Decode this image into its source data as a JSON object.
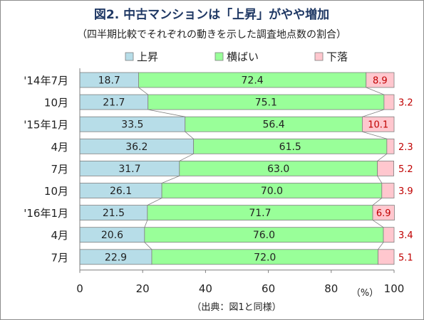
{
  "chart_data": {
    "type": "bar",
    "orientation": "horizontal",
    "stacked": true,
    "title": "図2. 中古マンションは「上昇」がやや増加",
    "subtitle": "（四半期比較でそれぞれの動きを示した調査地点数の割合）",
    "categories": [
      "'14年7月",
      "10月",
      "'15年1月",
      "4月",
      "7月",
      "10月",
      "'16年1月",
      "4月",
      "7月"
    ],
    "series": [
      {
        "name": "上昇",
        "color": "#b7dde8",
        "values": [
          18.7,
          21.7,
          33.5,
          36.2,
          31.7,
          26.1,
          21.5,
          20.6,
          22.9
        ]
      },
      {
        "name": "横ばい",
        "color": "#99ff99",
        "values": [
          72.4,
          75.1,
          56.4,
          61.5,
          63.0,
          70.0,
          71.7,
          76.0,
          72.0
        ]
      },
      {
        "name": "下落",
        "color": "#ffc7ce",
        "values": [
          8.9,
          3.2,
          10.1,
          2.3,
          5.2,
          3.9,
          6.9,
          3.4,
          5.1
        ]
      }
    ],
    "value_labels": [
      [
        "18.7",
        "21.7",
        "33.5",
        "36.2",
        "31.7",
        "26.1",
        "21.5",
        "20.6",
        "22.9"
      ],
      [
        "72.4",
        "75.1",
        "56.4",
        "61.5",
        "63.0",
        "70.0",
        "71.7",
        "76.0",
        "72.0"
      ],
      [
        "8.9",
        "3.2",
        "10.1",
        "2.3",
        "5.2",
        "3.9",
        "6.9",
        "3.4",
        "5.1"
      ]
    ],
    "xlim": [
      0,
      100
    ],
    "xticks": [
      0,
      20,
      40,
      60,
      80,
      100
    ],
    "xtick_labels": [
      "0",
      "20",
      "40",
      "60",
      "80",
      "100"
    ],
    "x_unit": "（%）",
    "grid": false,
    "legend_position": "top",
    "source_note": "（出典：図1と同様）",
    "label_colors": {
      "inside": "#222222",
      "outside": "#c00000"
    }
  }
}
